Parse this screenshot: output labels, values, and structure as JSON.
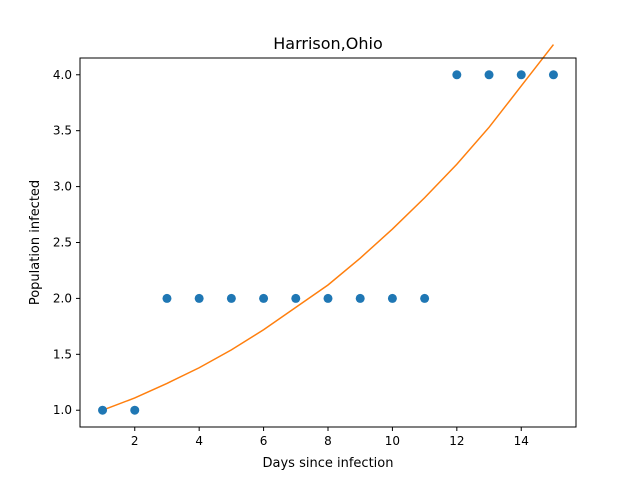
{
  "chart_data": {
    "type": "scatter",
    "title": "Harrison,Ohio",
    "xlabel": "Days since infection",
    "ylabel": "Population infected",
    "xlim": [
      0.3,
      15.7
    ],
    "ylim": [
      0.85,
      4.15
    ],
    "xticks": [
      2,
      4,
      6,
      8,
      10,
      12,
      14
    ],
    "xtick_labels": [
      "2",
      "4",
      "6",
      "8",
      "10",
      "12",
      "14"
    ],
    "yticks": [
      1.0,
      1.5,
      2.0,
      2.5,
      3.0,
      3.5,
      4.0
    ],
    "ytick_labels": [
      "1.0",
      "1.5",
      "2.0",
      "2.5",
      "3.0",
      "3.5",
      "4.0"
    ],
    "grid": false,
    "series": [
      {
        "kind": "scatter",
        "color": "#1f77b4",
        "x": [
          1,
          2,
          3,
          4,
          5,
          6,
          7,
          8,
          9,
          10,
          11,
          12,
          13,
          14,
          15
        ],
        "y": [
          1,
          1,
          2,
          2,
          2,
          2,
          2,
          2,
          2,
          2,
          2,
          4,
          4,
          4,
          4
        ]
      },
      {
        "kind": "line",
        "color": "#ff7f0e",
        "x": [
          1,
          2,
          3,
          4,
          5,
          6,
          7,
          8,
          9,
          10,
          11,
          12,
          13,
          14,
          15
        ],
        "y": [
          1.0,
          1.11,
          1.24,
          1.38,
          1.54,
          1.72,
          1.92,
          2.12,
          2.36,
          2.62,
          2.9,
          3.2,
          3.53,
          3.9,
          4.27
        ]
      }
    ]
  }
}
